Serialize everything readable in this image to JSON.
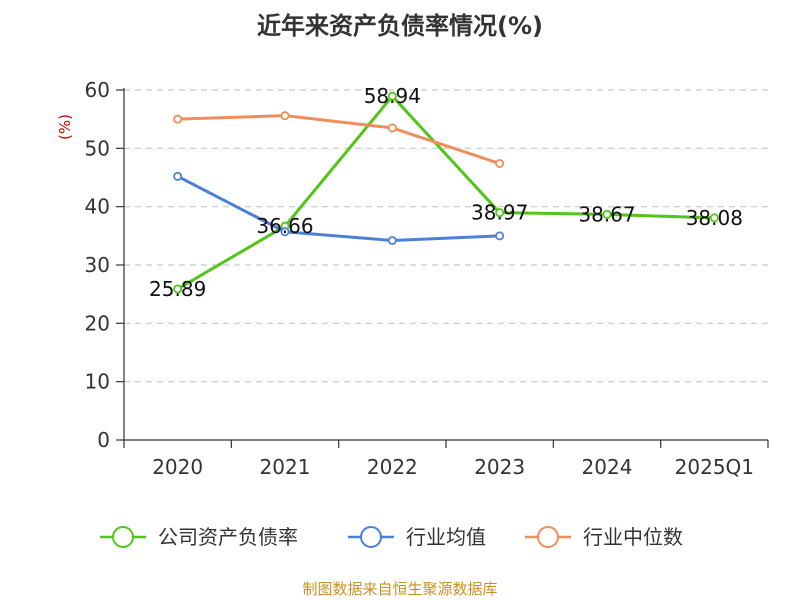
{
  "chart_data": {
    "type": "line",
    "title": "近年来资产负债率情况(%)",
    "ylabel": "(%)",
    "ylim": [
      0,
      60
    ],
    "yticks": [
      0,
      10,
      20,
      30,
      40,
      50,
      60
    ],
    "categories": [
      "2020",
      "2021",
      "2022",
      "2023",
      "2024",
      "2025Q1"
    ],
    "grid": true,
    "legend_position": "bottom",
    "series": [
      {
        "name": "公司资产负债率",
        "color": "#52c41a",
        "values": [
          25.89,
          36.66,
          58.94,
          38.97,
          38.67,
          38.08
        ],
        "labels": [
          "25.89",
          "36.66",
          "58.94",
          "38.97",
          "38.67",
          "38.08"
        ]
      },
      {
        "name": "行业均值",
        "color": "#4a7fdb",
        "values": [
          45.2,
          35.7,
          34.2,
          35.0,
          null,
          null
        ]
      },
      {
        "name": "行业中位数",
        "color": "#f28c5a",
        "values": [
          55.0,
          55.6,
          53.5,
          47.4,
          null,
          null
        ]
      }
    ]
  },
  "source": "制图数据来自恒生聚源数据库"
}
